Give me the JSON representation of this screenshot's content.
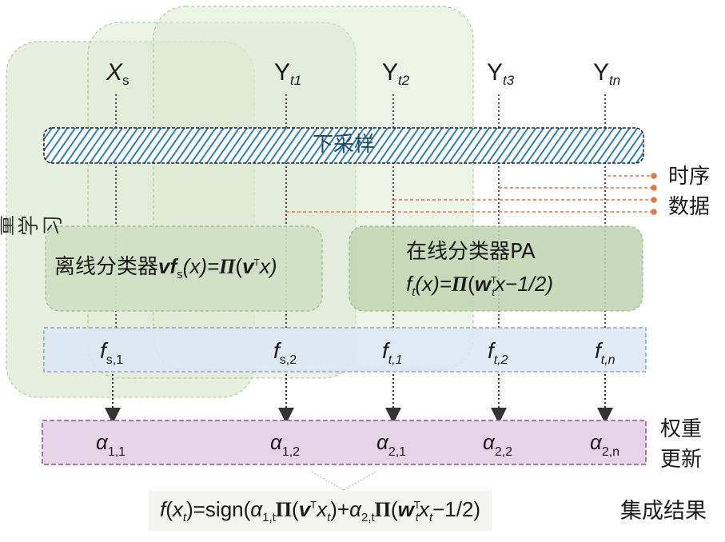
{
  "top_labels": [
    {
      "main": "X",
      "sub": "s"
    },
    {
      "main": "Y",
      "sub": "t1"
    },
    {
      "main": "Y",
      "sub": "t2"
    },
    {
      "main": "Y",
      "sub": "t3"
    },
    {
      "main": "Y",
      "sub": "tn"
    }
  ],
  "downsample_label": "下采样",
  "side_label": "增量学习",
  "time_series_label_1": "时序",
  "time_series_label_2": "数据",
  "offline": {
    "prefix": "离线分类器",
    "v": "v",
    "f": "f",
    "f_sub": "s",
    "args": "(x)=",
    "pi": "Π",
    "rest_open": "(",
    "vt": "v",
    "t_sup": "T",
    "x_close": "x)"
  },
  "online": {
    "title": "在线分类器PA",
    "f": "f",
    "f_sub": "t",
    "args": "(x)=",
    "pi": "Π",
    "open": "(",
    "w": "w",
    "w_sup": "T",
    "w_sub": "t",
    "tail": "x−1/2)"
  },
  "f_labels": [
    {
      "main": "f",
      "sub": "s,1"
    },
    {
      "main": "f",
      "sub": "s,2"
    },
    {
      "main": "f",
      "sub": "t,1"
    },
    {
      "main": "f",
      "sub": "t,2"
    },
    {
      "main": "f",
      "sub": "t,n"
    }
  ],
  "alpha_labels": [
    {
      "main": "α",
      "sub": "1,1"
    },
    {
      "main": "α",
      "sub": "1,2"
    },
    {
      "main": "α",
      "sub": "2,1"
    },
    {
      "main": "α",
      "sub": "2,2"
    },
    {
      "main": "α",
      "sub": "2,n"
    }
  ],
  "weight_label_1": "权重",
  "weight_label_2": "更新",
  "ensemble_label": "集成结果",
  "formula": {
    "f": "f",
    "x": "x",
    "t": "t",
    "eq_sign": ")=sign(",
    "a1": "α",
    "a1_sub": "1,t",
    "pi": "Π",
    "v": "v",
    "T": "T",
    "plus": "+",
    "a2": "α",
    "a2_sub": "2,t",
    "w": "w",
    "tail": "−1/2)"
  },
  "colors": {
    "green_fill": "#dfe9d3",
    "green_edge": "#a9c193",
    "classifier_fill": "#cfdfc2",
    "blue_fill": "#dde6f4",
    "blue_edge": "#8ea6d4",
    "purple_fill": "#e6d3e6",
    "purple_edge": "#9e6c9e",
    "hatch_fill": "#2c7fb3",
    "orange": "#d97a4a"
  }
}
